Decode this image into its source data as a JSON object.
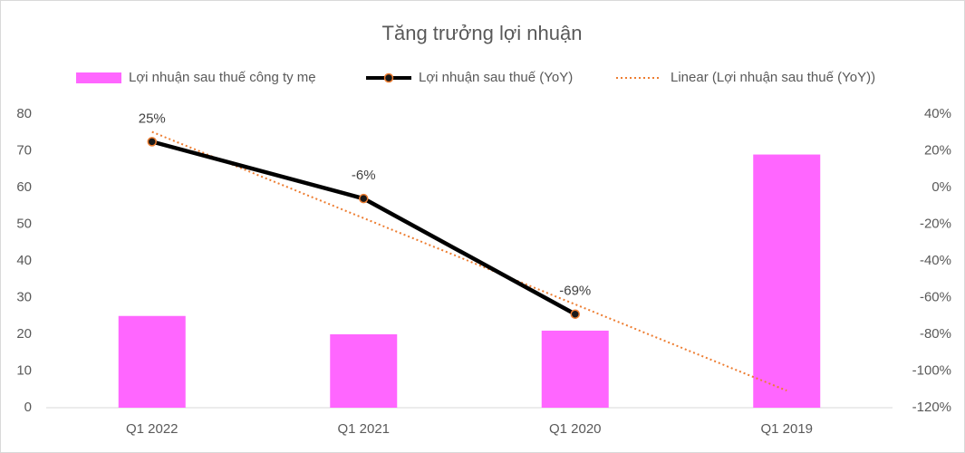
{
  "chart_data": {
    "type": "combo",
    "title": "Tăng trưởng lợi nhuận",
    "categories": [
      "Q1 2022",
      "Q1 2021",
      "Q1 2020",
      "Q1 2019"
    ],
    "series": [
      {
        "name": "Lợi nhuận sau thuế công ty mẹ",
        "type": "bar",
        "color": "#ff66ff",
        "values": [
          25,
          20,
          21,
          69
        ]
      },
      {
        "name": "Lợi nhuận sau thuế (YoY)",
        "type": "line",
        "axis": "y2",
        "color": "#000000",
        "marker_color": "#ed7d31",
        "values": [
          25,
          -6,
          -69,
          null
        ],
        "value_labels": [
          "25%",
          "-6%",
          "-69%",
          null
        ]
      },
      {
        "name": "Linear (Lợi nhuận sau thuế (YoY))",
        "type": "trendline",
        "axis": "y2",
        "color": "#ed7d31",
        "values": [
          30.33,
          -16.67,
          -63.67,
          -110.67
        ]
      }
    ],
    "ylim": [
      0,
      80
    ],
    "yticks": [
      0,
      10,
      20,
      30,
      40,
      50,
      60,
      70,
      80
    ],
    "y2lim": [
      -120,
      40
    ],
    "y2ticks": [
      {
        "value": -120,
        "label": "-120%"
      },
      {
        "value": -100,
        "label": "-100%"
      },
      {
        "value": -80,
        "label": "-80%"
      },
      {
        "value": -60,
        "label": "-60%"
      },
      {
        "value": -40,
        "label": "-40%"
      },
      {
        "value": -20,
        "label": "-20%"
      },
      {
        "value": 0,
        "label": "0%"
      },
      {
        "value": 20,
        "label": "20%"
      },
      {
        "value": 40,
        "label": "40%"
      }
    ],
    "grid": false
  }
}
